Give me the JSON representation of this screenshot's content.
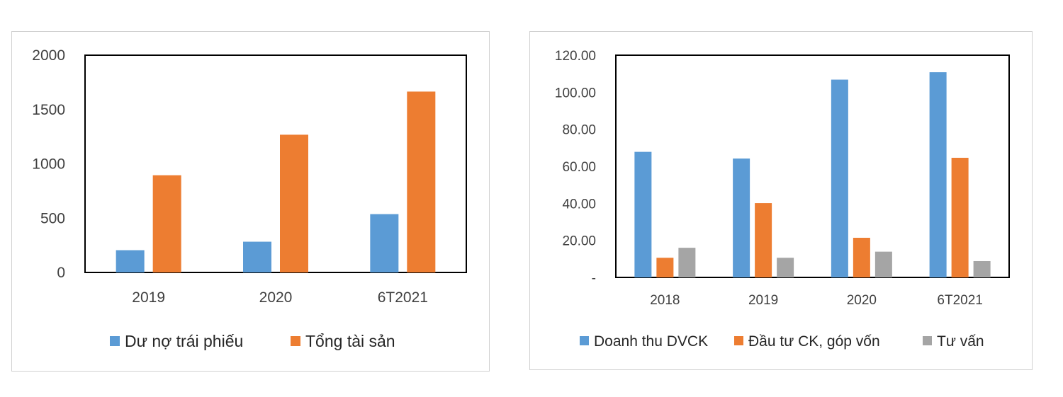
{
  "chart_data": [
    {
      "type": "bar",
      "categories": [
        "2019",
        "2020",
        "6T2021"
      ],
      "series": [
        {
          "name": "Dư nợ trái phiếu",
          "values": [
            205,
            283,
            537
          ],
          "color": "#5B9BD5"
        },
        {
          "name": "Tổng tài sản",
          "values": [
            895,
            1268,
            1665
          ],
          "color": "#ED7D31"
        }
      ],
      "y_ticks": [
        "0",
        "500",
        "1000",
        "1500",
        "2000"
      ],
      "ylim": [
        0,
        2000
      ],
      "grid": false,
      "legend_position": "bottom"
    },
    {
      "type": "bar",
      "categories": [
        "2018",
        "2019",
        "2020",
        "6T2021"
      ],
      "series": [
        {
          "name": "Doanh thu DVCK",
          "values": [
            67.8,
            64.2,
            106.8,
            110.8
          ],
          "color": "#5B9BD5"
        },
        {
          "name": "Đầu tư CK, góp vốn",
          "values": [
            10.6,
            40.1,
            21.4,
            64.6
          ],
          "color": "#ED7D31"
        },
        {
          "name": "Tư vấn",
          "values": [
            16.0,
            10.6,
            13.9,
            8.8
          ],
          "color": "#A5A5A5"
        }
      ],
      "y_ticks": [
        "-",
        "20.00",
        "40.00",
        "60.00",
        "80.00",
        "100.00",
        "120.00"
      ],
      "ylim": [
        0,
        120
      ],
      "grid": false,
      "legend_position": "bottom"
    }
  ]
}
